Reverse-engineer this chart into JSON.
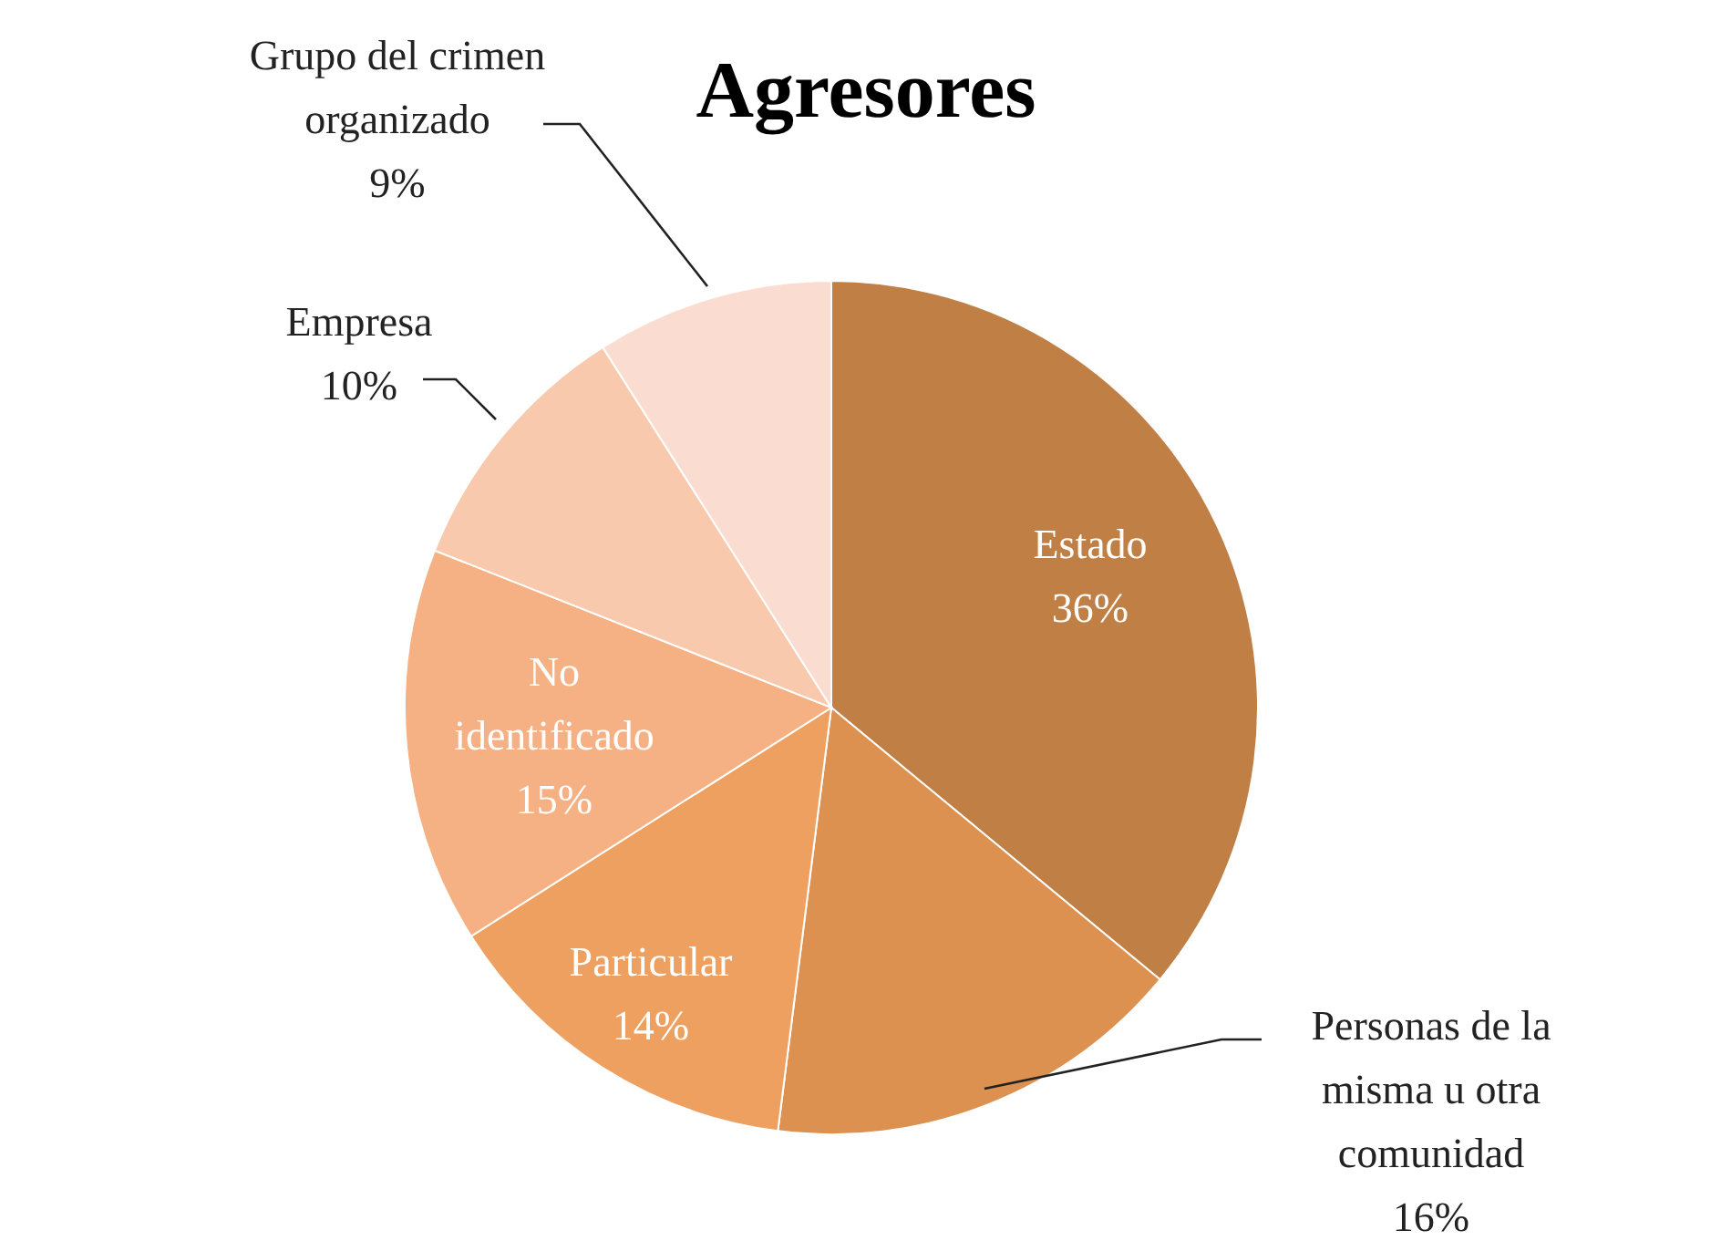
{
  "chart_data": {
    "type": "pie",
    "title": "Agresores",
    "categories": [
      "Estado",
      "Personas de la misma u otra comunidad",
      "Particular",
      "No identificado",
      "Empresa",
      "Grupo del crimen organizado"
    ],
    "values": [
      36,
      16,
      14,
      15,
      10,
      9
    ],
    "colors": [
      "#c07f45",
      "#dc9150",
      "#eda060",
      "#f5b183",
      "#f8c9ad",
      "#fbdcd0"
    ],
    "value_labels": [
      "36%",
      "16%",
      "14%",
      "15%",
      "10%",
      "9%"
    ]
  }
}
